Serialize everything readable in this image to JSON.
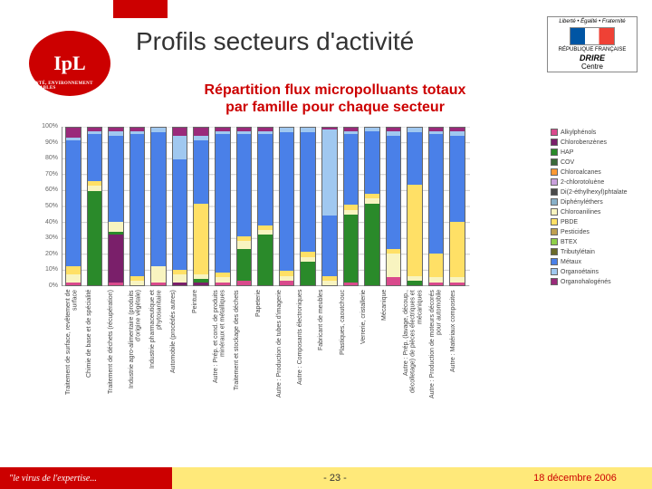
{
  "title": "Profils secteurs d'activité",
  "subtitle_l1": "Répartition flux micropolluants totaux",
  "subtitle_l2": "par famille pour chaque secteur",
  "logo_ipl": "IpL",
  "logo_ipl_sub": "SANTÉ, ENVIRONNEMENT DURABLES",
  "gov": {
    "l1": "Liberté • Égalité • Fraternité",
    "l2": "RÉPUBLIQUE FRANÇAISE",
    "drire": "DRIRE",
    "centre": "Centre"
  },
  "footer": {
    "tag": "le virus de l'expertise...",
    "page": "- 23 -",
    "date": "18 décembre 2006"
  },
  "chart": {
    "type": "stacked-bar-100",
    "ylim": [
      0,
      100
    ],
    "ytick_step": 10,
    "ylabels": [
      "0%",
      "10%",
      "20%",
      "30%",
      "40%",
      "50%",
      "60%",
      "70%",
      "80%",
      "90%",
      "100%"
    ],
    "series": [
      {
        "name": "Alkylphénols",
        "color": "#d94a8c"
      },
      {
        "name": "Chlorobenzènes",
        "color": "#7a1f6a"
      },
      {
        "name": "HAP",
        "color": "#2a8a2a"
      },
      {
        "name": "COV",
        "color": "#3a6a3a"
      },
      {
        "name": "Chloroalcanes",
        "color": "#ff9a33"
      },
      {
        "name": "2-chlorotoluène",
        "color": "#c9a0dc"
      },
      {
        "name": "Di(2-éthylhexyl)phtalate",
        "color": "#4a4a4a"
      },
      {
        "name": "Diphényléthers",
        "color": "#88b0c8"
      },
      {
        "name": "Chloroanilines",
        "color": "#f8f4c0"
      },
      {
        "name": "PBDE",
        "color": "#ffe066"
      },
      {
        "name": "Pesticides",
        "color": "#bfa050"
      },
      {
        "name": "BTEX",
        "color": "#8fcf4a"
      },
      {
        "name": "Tributylétain",
        "color": "#6a6a2a"
      },
      {
        "name": "Métaux",
        "color": "#4a80e8"
      },
      {
        "name": "Organoétains",
        "color": "#a0c8f0"
      },
      {
        "name": "Organohalogénés",
        "color": "#9a2a7a"
      }
    ],
    "categories": [
      "Traitement de surface, revêtement de surface",
      "Chimie de base et de spécialité",
      "Traitement de déchets (récupération)",
      "Industrie agro-alimentaire (produits d'origine végétale)",
      "Industrie pharmaceutique et phytosanitaire",
      "Automobile (procédés autres)",
      "Peinture",
      "Autre : Prép. et cond. de produits minéraux et métalliques",
      "Traitement et stockage des déchets",
      "Papeterie",
      "Autre : Production de tubes d'imagerie",
      "Autre : Composants électroniques",
      "Fabricant de meubles",
      "Plastiques, caoutchouc",
      "Verrerie, cristallerie",
      "Mécanique",
      "Autre : Prép. (lavage, découp., décolletage) de pièces électriques et mécaniques",
      "Autre : Production de moteurs décorés pour automobile",
      "Autre : Matériaux composites"
    ],
    "data": [
      [
        2,
        0,
        0,
        0,
        0,
        0,
        0,
        0,
        5,
        5,
        0,
        0,
        0,
        80,
        2,
        6
      ],
      [
        0,
        0,
        60,
        0,
        0,
        0,
        0,
        0,
        3,
        3,
        0,
        0,
        0,
        30,
        2,
        2
      ],
      [
        2,
        30,
        2,
        0,
        0,
        0,
        0,
        0,
        6,
        0,
        0,
        0,
        0,
        55,
        3,
        2
      ],
      [
        0,
        0,
        0,
        0,
        0,
        0,
        0,
        0,
        3,
        3,
        0,
        0,
        0,
        90,
        2,
        2
      ],
      [
        2,
        0,
        0,
        0,
        0,
        0,
        0,
        0,
        10,
        0,
        0,
        0,
        0,
        85,
        3,
        0
      ],
      [
        0,
        2,
        0,
        0,
        0,
        0,
        0,
        0,
        5,
        3,
        0,
        0,
        0,
        70,
        15,
        5
      ],
      [
        0,
        2,
        2,
        0,
        0,
        0,
        0,
        0,
        3,
        45,
        0,
        0,
        0,
        40,
        3,
        5
      ],
      [
        2,
        0,
        0,
        0,
        0,
        0,
        0,
        0,
        3,
        3,
        0,
        0,
        0,
        88,
        2,
        2
      ],
      [
        3,
        0,
        20,
        0,
        0,
        0,
        0,
        0,
        5,
        3,
        0,
        0,
        0,
        65,
        2,
        2
      ],
      [
        0,
        0,
        32,
        0,
        0,
        0,
        0,
        0,
        3,
        3,
        0,
        0,
        0,
        58,
        2,
        2
      ],
      [
        3,
        0,
        0,
        0,
        0,
        0,
        0,
        0,
        3,
        3,
        0,
        0,
        0,
        88,
        3,
        0
      ],
      [
        0,
        0,
        15,
        0,
        0,
        0,
        0,
        0,
        3,
        3,
        0,
        0,
        0,
        76,
        3,
        0
      ],
      [
        0,
        0,
        0,
        0,
        0,
        0,
        0,
        0,
        3,
        3,
        0,
        0,
        0,
        38,
        55,
        1
      ],
      [
        2,
        0,
        43,
        0,
        0,
        0,
        0,
        0,
        3,
        3,
        0,
        0,
        0,
        45,
        2,
        2
      ],
      [
        0,
        0,
        52,
        0,
        0,
        0,
        0,
        0,
        3,
        3,
        0,
        0,
        0,
        40,
        2,
        0
      ],
      [
        5,
        0,
        0,
        0,
        0,
        0,
        0,
        0,
        15,
        3,
        0,
        0,
        0,
        72,
        3,
        2
      ],
      [
        0,
        0,
        3,
        0,
        0,
        0,
        0,
        0,
        3,
        58,
        0,
        0,
        0,
        33,
        3,
        0
      ],
      [
        2,
        0,
        0,
        0,
        0,
        0,
        0,
        0,
        3,
        15,
        0,
        0,
        0,
        76,
        2,
        2
      ],
      [
        2,
        0,
        0,
        0,
        0,
        0,
        0,
        0,
        3,
        35,
        0,
        0,
        0,
        55,
        3,
        2
      ]
    ],
    "background": "#ffffff",
    "grid_color": "#cccccc",
    "label_fontsize": 7
  }
}
